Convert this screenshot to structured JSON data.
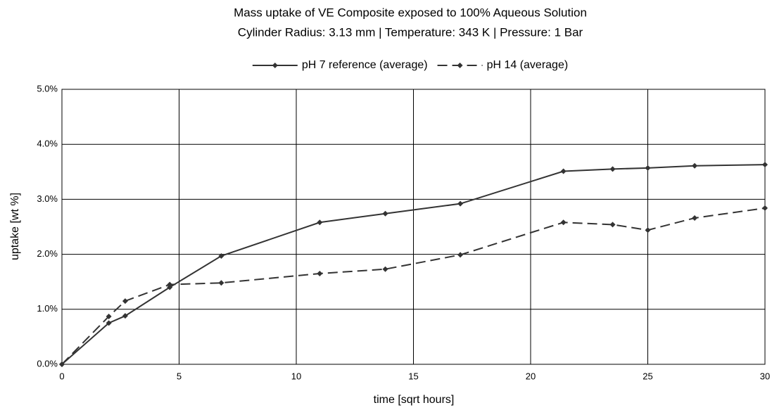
{
  "chart_data": {
    "type": "line",
    "title": "Mass uptake of VE Composite exposed to 100% Aqueous Solution",
    "subtitle": "Cylinder Radius: 3.13 mm | Temperature: 343 K | Pressure: 1 Bar",
    "x_label": "time [sqrt hours]",
    "y_label": "uptake [wt %]",
    "legend": "top",
    "grid": true,
    "xlim": [
      0,
      30
    ],
    "xticks": [
      0,
      5,
      10,
      15,
      20,
      25,
      30
    ],
    "ylim": [
      0,
      5
    ],
    "yticks": [
      {
        "value": 0,
        "label": "0.0%"
      },
      {
        "value": 1,
        "label": "1.0%"
      },
      {
        "value": 2,
        "label": "2.0%"
      },
      {
        "value": 3,
        "label": "3.0%"
      },
      {
        "value": 4,
        "label": "4.0%"
      },
      {
        "value": 5,
        "label": "5.0%"
      }
    ],
    "series": [
      {
        "name": "pH 7 reference (average)",
        "color": "#333333",
        "line_style": "solid",
        "x": [
          0,
          2,
          2.7,
          4.6,
          6.8,
          11,
          13.8,
          17,
          21.4,
          23.5,
          25,
          27,
          30
        ],
        "values": [
          0,
          0.75,
          0.88,
          1.4,
          1.97,
          2.58,
          2.74,
          2.92,
          3.51,
          3.55,
          3.57,
          3.61,
          3.63
        ]
      },
      {
        "name": "pH 14 (average)",
        "color": "#333333",
        "line_style": "dashed",
        "x": [
          0,
          2,
          2.7,
          4.6,
          6.8,
          11,
          13.8,
          17,
          21.4,
          23.5,
          25,
          27,
          30
        ],
        "values": [
          0,
          0.87,
          1.15,
          1.45,
          1.48,
          1.65,
          1.73,
          1.99,
          2.58,
          2.54,
          2.44,
          2.66,
          2.84
        ]
      }
    ]
  }
}
